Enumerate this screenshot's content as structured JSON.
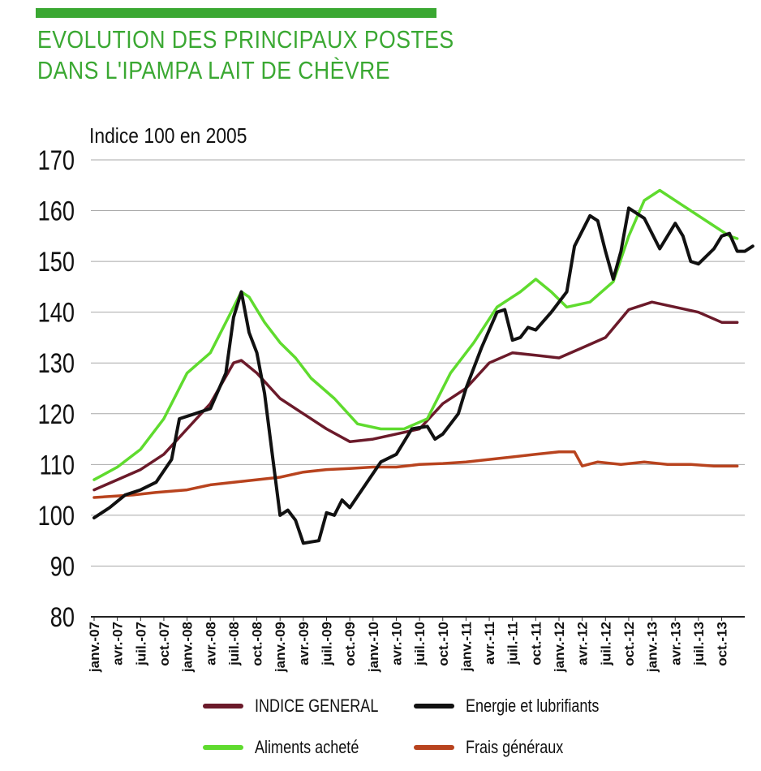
{
  "header": {
    "title_line1": "EVOLUTION DES PRINCIPAUX POSTES",
    "title_line2": "DANS L'IPAMPA LAIT DE CHÈVRE",
    "accent_color": "#3aa832"
  },
  "chart_data": {
    "type": "line",
    "title": "",
    "subtitle": "Indice 100 en 2005",
    "ylim": [
      80,
      170
    ],
    "yticks": [
      80,
      90,
      100,
      110,
      120,
      130,
      140,
      150,
      160,
      170
    ],
    "grid": true,
    "legend_position": "bottom",
    "x_tick_labels": [
      "janv.-07",
      "avr.-07",
      "juil.-07",
      "oct.-07",
      "janv.-08",
      "avr.-08",
      "juil.-08",
      "oct.-08",
      "janv.-09",
      "avr.-09",
      "juil.-09",
      "oct.-09",
      "janv.-10",
      "avr.-10",
      "juil.-10",
      "oct.-10",
      "janv.-11",
      "avr.-11",
      "juil.-11",
      "oct.-11",
      "janv.-12",
      "avr.-12",
      "juil.-12",
      "oct.-12",
      "janv.-13",
      "avr.-13",
      "juil.-13",
      "oct.-13"
    ],
    "x_start": "2007-01",
    "x_end": "2013-12",
    "series": [
      {
        "name": "INDICE GENERAL",
        "color": "#6b1a2a",
        "points": [
          [
            "2007-01",
            105
          ],
          [
            "2007-04",
            107
          ],
          [
            "2007-07",
            109
          ],
          [
            "2007-10",
            112
          ],
          [
            "2008-01",
            117
          ],
          [
            "2008-04",
            122
          ],
          [
            "2008-07",
            130
          ],
          [
            "2008-08",
            130.5
          ],
          [
            "2008-10",
            128
          ],
          [
            "2009-01",
            123
          ],
          [
            "2009-04",
            120
          ],
          [
            "2009-07",
            117
          ],
          [
            "2009-10",
            114.5
          ],
          [
            "2010-01",
            115
          ],
          [
            "2010-04",
            116
          ],
          [
            "2010-07",
            117
          ],
          [
            "2010-10",
            122
          ],
          [
            "2011-01",
            125
          ],
          [
            "2011-04",
            130
          ],
          [
            "2011-07",
            132
          ],
          [
            "2011-10",
            131.5
          ],
          [
            "2012-01",
            131
          ],
          [
            "2012-04",
            133
          ],
          [
            "2012-07",
            135
          ],
          [
            "2012-10",
            140.5
          ],
          [
            "2013-01",
            142
          ],
          [
            "2013-04",
            141
          ],
          [
            "2013-07",
            140
          ],
          [
            "2013-10",
            138
          ],
          [
            "2013-12",
            138
          ]
        ]
      },
      {
        "name": "Energie et lubrifiants",
        "color": "#111111",
        "points": [
          [
            "2007-01",
            99.5
          ],
          [
            "2007-03",
            101.5
          ],
          [
            "2007-05",
            104
          ],
          [
            "2007-07",
            105
          ],
          [
            "2007-09",
            106.5
          ],
          [
            "2007-11",
            111
          ],
          [
            "2007-12",
            119
          ],
          [
            "2008-02",
            120
          ],
          [
            "2008-04",
            121
          ],
          [
            "2008-06",
            128
          ],
          [
            "2008-07",
            139
          ],
          [
            "2008-08",
            144
          ],
          [
            "2008-09",
            136
          ],
          [
            "2008-10",
            132
          ],
          [
            "2008-11",
            124
          ],
          [
            "2008-12",
            112
          ],
          [
            "2009-01",
            100
          ],
          [
            "2009-02",
            101
          ],
          [
            "2009-03",
            99
          ],
          [
            "2009-04",
            94.5
          ],
          [
            "2009-06",
            95
          ],
          [
            "2009-07",
            100.5
          ],
          [
            "2009-08",
            100
          ],
          [
            "2009-09",
            103
          ],
          [
            "2009-10",
            101.5
          ],
          [
            "2009-12",
            106
          ],
          [
            "2010-02",
            110.5
          ],
          [
            "2010-04",
            112
          ],
          [
            "2010-06",
            117
          ],
          [
            "2010-08",
            117.5
          ],
          [
            "2010-09",
            115
          ],
          [
            "2010-10",
            116
          ],
          [
            "2010-12",
            120
          ],
          [
            "2011-01",
            125
          ],
          [
            "2011-03",
            133
          ],
          [
            "2011-05",
            140
          ],
          [
            "2011-06",
            140.5
          ],
          [
            "2011-07",
            134.5
          ],
          [
            "2011-08",
            135
          ],
          [
            "2011-09",
            137
          ],
          [
            "2011-10",
            136.5
          ],
          [
            "2011-12",
            140
          ],
          [
            "2012-02",
            144
          ],
          [
            "2012-03",
            153
          ],
          [
            "2012-05",
            159
          ],
          [
            "2012-06",
            158
          ],
          [
            "2012-07",
            152
          ],
          [
            "2012-08",
            146.5
          ],
          [
            "2012-09",
            152
          ],
          [
            "2012-10",
            160.5
          ],
          [
            "2012-11",
            159.5
          ],
          [
            "2012-12",
            158.5
          ],
          [
            "2013-02",
            152.5
          ],
          [
            "2013-04",
            157.5
          ],
          [
            "2013-05",
            155
          ],
          [
            "2013-06",
            150
          ],
          [
            "2013-07",
            149.5
          ],
          [
            "2013-09",
            152.5
          ],
          [
            "2013-10",
            155
          ],
          [
            "2013-11",
            155.5
          ],
          [
            "2013-12",
            152
          ],
          [
            "2014-01",
            152
          ],
          [
            "2014-02",
            153
          ]
        ]
      },
      {
        "name": "Aliments acheté",
        "color": "#5fdb2e",
        "points": [
          [
            "2007-01",
            107
          ],
          [
            "2007-04",
            109.5
          ],
          [
            "2007-07",
            113
          ],
          [
            "2007-10",
            119
          ],
          [
            "2008-01",
            128
          ],
          [
            "2008-04",
            132
          ],
          [
            "2008-06",
            138
          ],
          [
            "2008-08",
            144
          ],
          [
            "2008-09",
            143
          ],
          [
            "2008-11",
            138
          ],
          [
            "2009-01",
            134
          ],
          [
            "2009-03",
            131
          ],
          [
            "2009-05",
            127
          ],
          [
            "2009-08",
            123
          ],
          [
            "2009-11",
            118
          ],
          [
            "2010-02",
            117
          ],
          [
            "2010-05",
            117
          ],
          [
            "2010-08",
            119
          ],
          [
            "2010-11",
            128
          ],
          [
            "2011-02",
            134
          ],
          [
            "2011-05",
            141
          ],
          [
            "2011-08",
            144
          ],
          [
            "2011-10",
            146.5
          ],
          [
            "2011-12",
            144
          ],
          [
            "2012-02",
            141
          ],
          [
            "2012-05",
            142
          ],
          [
            "2012-08",
            146
          ],
          [
            "2012-10",
            155
          ],
          [
            "2012-12",
            162
          ],
          [
            "2013-02",
            164
          ],
          [
            "2013-05",
            161
          ],
          [
            "2013-08",
            158
          ],
          [
            "2013-11",
            155
          ],
          [
            "2013-12",
            154.5
          ]
        ]
      },
      {
        "name": "Frais généraux",
        "color": "#b8431e",
        "points": [
          [
            "2007-01",
            103.5
          ],
          [
            "2007-06",
            104
          ],
          [
            "2007-09",
            104.5
          ],
          [
            "2008-01",
            105
          ],
          [
            "2008-04",
            106
          ],
          [
            "2008-07",
            106.5
          ],
          [
            "2008-10",
            107
          ],
          [
            "2009-01",
            107.5
          ],
          [
            "2009-04",
            108.5
          ],
          [
            "2009-07",
            109
          ],
          [
            "2009-10",
            109.2
          ],
          [
            "2010-01",
            109.5
          ],
          [
            "2010-04",
            109.5
          ],
          [
            "2010-07",
            110
          ],
          [
            "2010-10",
            110.2
          ],
          [
            "2011-01",
            110.5
          ],
          [
            "2011-04",
            111
          ],
          [
            "2011-07",
            111.5
          ],
          [
            "2011-10",
            112
          ],
          [
            "2012-01",
            112.5
          ],
          [
            "2012-03",
            112.5
          ],
          [
            "2012-04",
            109.7
          ],
          [
            "2012-06",
            110.5
          ],
          [
            "2012-09",
            110
          ],
          [
            "2012-12",
            110.5
          ],
          [
            "2013-03",
            110
          ],
          [
            "2013-06",
            110
          ],
          [
            "2013-09",
            109.7
          ],
          [
            "2013-12",
            109.7
          ]
        ]
      }
    ]
  }
}
